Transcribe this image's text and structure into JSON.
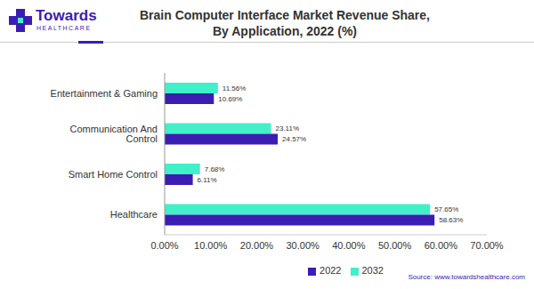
{
  "chart_data": {
    "type": "bar",
    "orientation": "horizontal",
    "title": "Brain Computer Interface Market Revenue Share, By Application, 2022 (%)",
    "annotations": [
      "Towards",
      "HEALTHCARE",
      "Source: www.towardshealthcare.com"
    ],
    "categories": [
      "Entertainment & Gaming",
      "Communication And Control",
      "Smart Home Control",
      "Healthcare"
    ],
    "series": [
      {
        "name": "2032",
        "color": "#40f0c8",
        "values": [
          11.56,
          23.11,
          7.68,
          57.65
        ],
        "value_labels": [
          "11.56%",
          "23.11%",
          "7.68%",
          "57.65%"
        ]
      },
      {
        "name": "2022",
        "color": "#3b1db3",
        "values": [
          10.69,
          24.57,
          6.11,
          58.63
        ],
        "value_labels": [
          "10.69%",
          "24.57%",
          "6.11%",
          "58.63%"
        ]
      }
    ],
    "xlim": [
      0,
      70
    ],
    "xticks": [
      {
        "value": 0,
        "label": "0.00%"
      },
      {
        "value": 10,
        "label": "10.00%"
      },
      {
        "value": 20,
        "label": "20.00%"
      },
      {
        "value": 30,
        "label": "30.00%"
      },
      {
        "value": 40,
        "label": "40.00%"
      },
      {
        "value": 50,
        "label": "50.00%"
      },
      {
        "value": 60,
        "label": "60.00%"
      },
      {
        "value": 70,
        "label": "70.00%"
      }
    ],
    "grid": false,
    "legend": "bottom",
    "data_labels": true
  }
}
